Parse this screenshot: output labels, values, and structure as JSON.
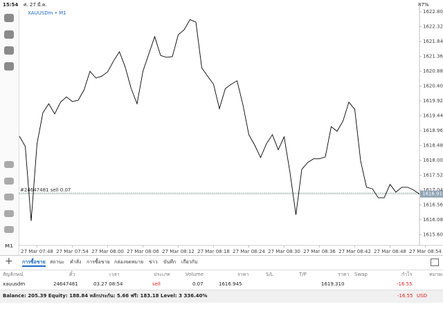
{
  "status_bar": {
    "time": "15:54",
    "date": "ศ. 27 มี.ค.",
    "battery": "87%"
  },
  "toolbar_label": "M1",
  "chart_data": {
    "type": "line",
    "title": "XAUUSDm • M1",
    "color": "#000000",
    "categories": [
      null,
      null,
      null,
      "27 Mar 07:48",
      null,
      null,
      null,
      null,
      null,
      "27 Mar 07:54",
      null,
      null,
      null,
      null,
      null,
      "27 Mar 08:00",
      null,
      null,
      null,
      null,
      null,
      "27 Mar 08:06",
      null,
      null,
      null,
      null,
      null,
      "27 Mar 08:12",
      null,
      null,
      null,
      null,
      null,
      "27 Mar 08:18",
      null,
      null,
      null,
      null,
      null,
      "27 Mar 08:24",
      null,
      null,
      null,
      null,
      null,
      "27 Mar 08:30",
      null,
      null,
      null,
      null,
      null,
      "27 Mar 08:36",
      null,
      null,
      null,
      null,
      null,
      "27 Mar 08:42",
      null,
      null,
      null,
      null,
      null,
      "27 Mar 08:48",
      null,
      null,
      null,
      null,
      null,
      "27 Mar 08:54"
    ],
    "values": [
      1618.78,
      1618.45,
      1616.04,
      1618.54,
      1619.54,
      1619.83,
      1619.5,
      1619.88,
      1620.05,
      1619.9,
      1619.94,
      1620.28,
      1620.88,
      1620.66,
      1620.72,
      1620.86,
      1621.21,
      1621.51,
      1621.01,
      1620.32,
      1619.83,
      1620.88,
      1621.44,
      1622.0,
      1621.39,
      1621.33,
      1621.35,
      1622.06,
      1622.22,
      1622.55,
      1622.47,
      1620.99,
      1620.72,
      1620.46,
      1619.67,
      1620.32,
      1620.46,
      1620.57,
      1619.79,
      1618.83,
      1618.49,
      1618.09,
      1618.54,
      1618.83,
      1618.34,
      1618.76,
      1617.6,
      1616.24,
      1617.71,
      1617.93,
      1618.05,
      1618.05,
      1618.11,
      1619.09,
      1618.94,
      1619.27,
      1619.88,
      1619.65,
      1617.98,
      1617.13,
      1617.08,
      1616.79,
      1616.79,
      1617.22,
      1616.97,
      1617.13,
      1617.13,
      1617.04,
      1616.91,
      null
    ],
    "ylim": [
      1615.25,
      1622.96
    ],
    "yticks": [
      {
        "value": 1615.6,
        "label": "1615.600"
      },
      {
        "value": 1616.08,
        "label": "1616.080"
      },
      {
        "value": 1616.56,
        "label": "1616.560"
      },
      {
        "value": 1617.04,
        "label": "1617.040"
      },
      {
        "value": 1617.52,
        "label": "1617.520"
      },
      {
        "value": 1618.0,
        "label": "1618.000"
      },
      {
        "value": 1618.48,
        "label": "1618.480"
      },
      {
        "value": 1618.96,
        "label": "1618.960"
      },
      {
        "value": 1619.44,
        "label": "1619.440"
      },
      {
        "value": 1619.92,
        "label": "1619.920"
      },
      {
        "value": 1620.4,
        "label": "1620.400"
      },
      {
        "value": 1620.88,
        "label": "1620.880"
      },
      {
        "value": 1621.36,
        "label": "1621.360"
      },
      {
        "value": 1621.84,
        "label": "1621.840"
      },
      {
        "value": 1622.32,
        "label": "1622.320"
      },
      {
        "value": 1622.8,
        "label": "1622.800"
      }
    ],
    "order_line": {
      "value": 1616.945,
      "label": "#24647481 sell 0.07"
    },
    "bid": {
      "value": 1616.91,
      "label": "1616.910"
    }
  },
  "tabs": [
    "การซื้อขาย",
    "สถานะ",
    "คำสั่ง",
    "การซื้อขาย",
    "กล่องจดหมาย",
    "ข่าว",
    "บันทึก",
    "เกี่ยวกับ"
  ],
  "table": {
    "columns": [
      "สัญลักษณ์",
      "ตั๋ว",
      "เวลา",
      "ประเภท",
      "Volume",
      "ราคา",
      "S/L",
      "T/P",
      "ราคา",
      "Swap",
      "กำไร",
      "หมายเหตุ"
    ],
    "rows": [
      {
        "symbol": "xauusdm",
        "ticket": "24647481",
        "time": "03.27 08:54",
        "type": "sell",
        "volume": "0.07",
        "price": "1616.945",
        "current_price": "1619.310",
        "profit": "-16.55"
      }
    ]
  },
  "footer": {
    "summary": "Balance: 205.39 Equity: 188.84 หลักประกัน: 5.66 ฟรี: 183.18 Level: 3 336.40%",
    "profit": "-16.55",
    "currency": "USD"
  }
}
